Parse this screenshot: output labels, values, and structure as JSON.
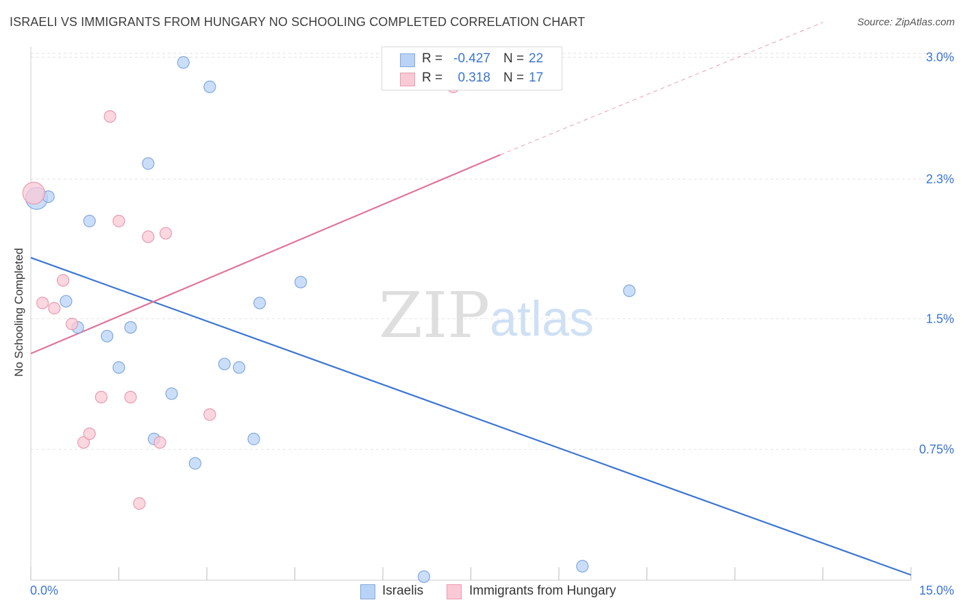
{
  "title": "ISRAELI VS IMMIGRANTS FROM HUNGARY NO SCHOOLING COMPLETED CORRELATION CHART",
  "source": "Source: ZipAtlas.com",
  "watermark": {
    "zip": "ZIP",
    "atlas": "atlas"
  },
  "stats": [
    {
      "r_label": "R =",
      "r_value": "-0.427",
      "n_label": "N =",
      "n_value": "22",
      "color": "#b9d3f7",
      "border": "#7fa8e0"
    },
    {
      "r_label": "R =",
      "r_value": "0.318",
      "n_label": "N =",
      "n_value": "17",
      "color": "#f9c9d6",
      "border": "#e89ab0"
    }
  ],
  "legend": [
    {
      "label": "Israelis",
      "color": "#b9d3f7",
      "border": "#7fa8e0"
    },
    {
      "label": "Immigrants from Hungary",
      "color": "#f9c9d6",
      "border": "#e89ab0"
    }
  ],
  "chart_data": {
    "type": "scatter",
    "title": "ISRAELI VS IMMIGRANTS FROM HUNGARY NO SCHOOLING COMPLETED CORRELATION CHART",
    "xlabel": "",
    "ylabel": "No Schooling Completed",
    "xlim": [
      0,
      15
    ],
    "ylim": [
      0,
      3.15
    ],
    "x_tick_labels": [
      "0.0%",
      "15.0%"
    ],
    "y_ticks": [
      {
        "value": 0.75,
        "label": "0.75%"
      },
      {
        "value": 1.5,
        "label": "1.5%"
      },
      {
        "value": 2.3,
        "label": "2.3%"
      },
      {
        "value": 3.0,
        "label": "3.0%"
      }
    ],
    "grid": true,
    "series": [
      {
        "name": "Israelis",
        "color": "#b9d3f7",
        "stroke": "#7fa8e0",
        "line_color": "#3a74d1",
        "points": [
          {
            "x": 0.1,
            "y": 2.19,
            "size": "large"
          },
          {
            "x": 0.3,
            "y": 2.2
          },
          {
            "x": 0.6,
            "y": 1.6
          },
          {
            "x": 0.8,
            "y": 1.45
          },
          {
            "x": 1.0,
            "y": 2.06
          },
          {
            "x": 1.3,
            "y": 1.4
          },
          {
            "x": 1.5,
            "y": 1.22
          },
          {
            "x": 1.7,
            "y": 1.45
          },
          {
            "x": 2.0,
            "y": 2.39
          },
          {
            "x": 2.1,
            "y": 0.81
          },
          {
            "x": 2.4,
            "y": 1.07
          },
          {
            "x": 2.6,
            "y": 2.97
          },
          {
            "x": 2.8,
            "y": 0.67
          },
          {
            "x": 3.05,
            "y": 2.83
          },
          {
            "x": 3.3,
            "y": 1.24
          },
          {
            "x": 3.55,
            "y": 1.22
          },
          {
            "x": 3.8,
            "y": 0.81
          },
          {
            "x": 3.9,
            "y": 1.59
          },
          {
            "x": 4.6,
            "y": 1.71
          },
          {
            "x": 6.7,
            "y": 0.02
          },
          {
            "x": 9.4,
            "y": 0.08
          },
          {
            "x": 10.2,
            "y": 1.66
          }
        ],
        "trend": {
          "x": [
            0,
            15
          ],
          "y": [
            1.85,
            0.03
          ]
        }
      },
      {
        "name": "Immigrants from Hungary",
        "color": "#f9c9d6",
        "stroke": "#e89ab0",
        "line_color": "#e0739a",
        "points": [
          {
            "x": 0.05,
            "y": 2.22,
            "size": "large"
          },
          {
            "x": 0.2,
            "y": 1.59
          },
          {
            "x": 0.4,
            "y": 1.56
          },
          {
            "x": 0.55,
            "y": 1.72
          },
          {
            "x": 0.7,
            "y": 1.47
          },
          {
            "x": 0.9,
            "y": 0.79
          },
          {
            "x": 1.0,
            "y": 0.84
          },
          {
            "x": 1.2,
            "y": 1.05
          },
          {
            "x": 1.35,
            "y": 2.66
          },
          {
            "x": 1.5,
            "y": 2.06
          },
          {
            "x": 1.7,
            "y": 1.05
          },
          {
            "x": 1.85,
            "y": 0.44
          },
          {
            "x": 2.0,
            "y": 1.97
          },
          {
            "x": 2.2,
            "y": 0.79
          },
          {
            "x": 2.3,
            "y": 1.99
          },
          {
            "x": 3.05,
            "y": 0.95
          },
          {
            "x": 7.2,
            "y": 2.83
          }
        ],
        "trend": {
          "x": [
            0,
            8
          ],
          "y": [
            1.3,
            2.44
          ]
        },
        "trend_dashed": {
          "x": [
            8,
            13.5
          ],
          "y": [
            2.44,
            3.2
          ]
        }
      }
    ]
  }
}
